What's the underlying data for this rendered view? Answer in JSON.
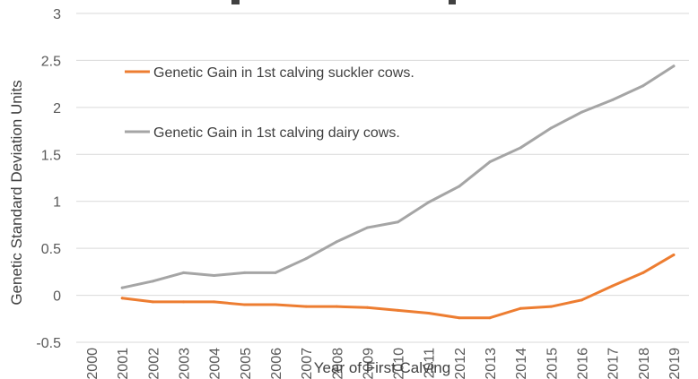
{
  "chart_data": {
    "type": "line",
    "xlabel": "Year of First Calving",
    "ylabel": "Genetic Standard Deviation Units",
    "x": [
      "2000",
      "2001",
      "2002",
      "2003",
      "2004",
      "2005",
      "2006",
      "2007",
      "2008",
      "2009",
      "2010",
      "2011",
      "2012",
      "2013",
      "2014",
      "2015",
      "2016",
      "2017",
      "2018",
      "2019"
    ],
    "ylim": [
      -0.5,
      3
    ],
    "yticks": [
      "-0.5",
      "0",
      "0.5",
      "1",
      "1.5",
      "2",
      "2.5",
      "3"
    ],
    "grid": true,
    "legend_position": "top-left",
    "series": [
      {
        "name": "Genetic Gain in 1st calving suckler cows.",
        "color": "#ed7d31",
        "values": [
          null,
          -0.03,
          -0.07,
          -0.07,
          -0.07,
          -0.1,
          -0.1,
          -0.12,
          -0.12,
          -0.13,
          -0.16,
          -0.19,
          -0.24,
          -0.24,
          -0.14,
          -0.12,
          -0.05,
          0.1,
          0.24,
          0.43
        ]
      },
      {
        "name": "Genetic Gain in 1st calving dairy cows.",
        "color": "#a5a5a5",
        "values": [
          null,
          0.08,
          0.15,
          0.24,
          0.21,
          0.24,
          0.24,
          0.39,
          0.57,
          0.72,
          0.78,
          0.99,
          1.16,
          1.42,
          1.57,
          1.78,
          1.95,
          2.08,
          2.23,
          2.44
        ]
      }
    ]
  }
}
